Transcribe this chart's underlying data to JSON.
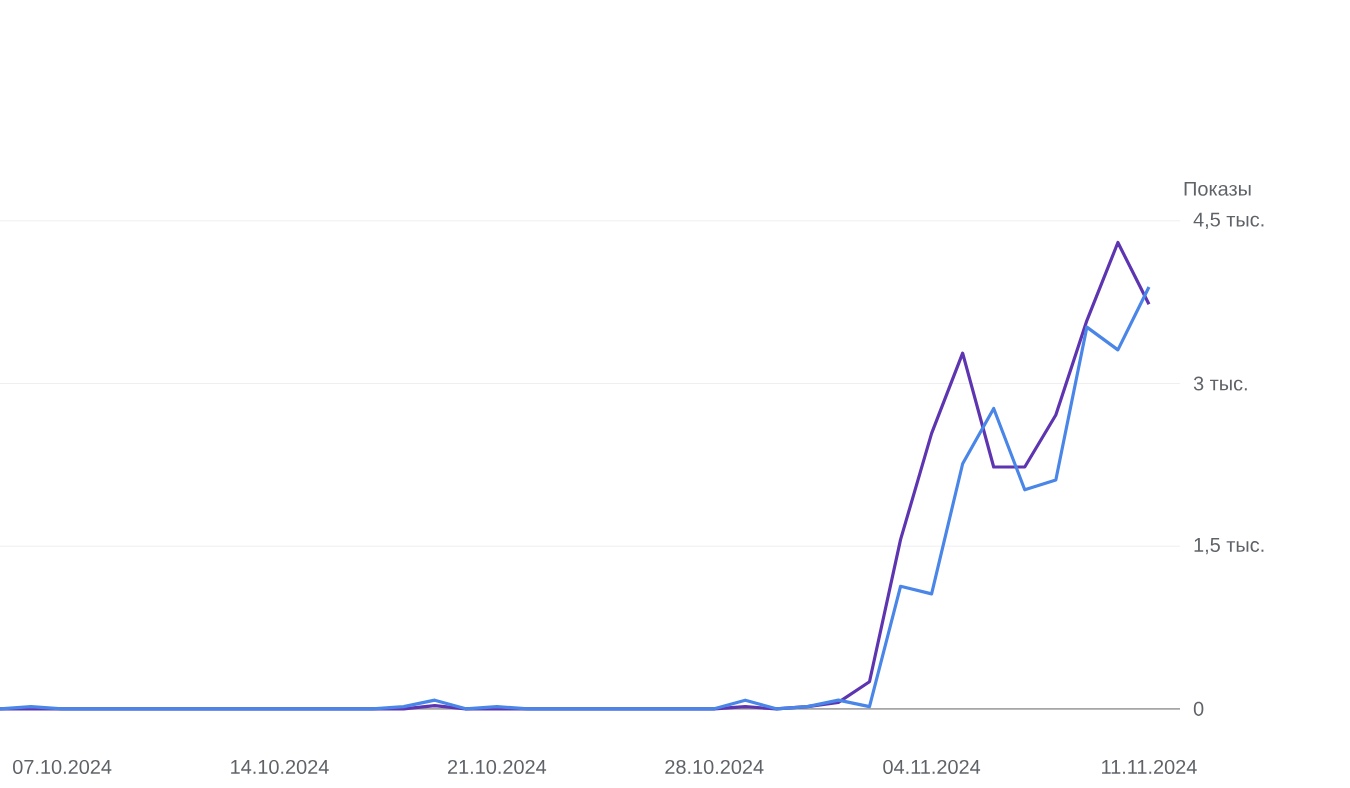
{
  "chart_data": {
    "type": "line",
    "ylabel": "Показы",
    "x": [
      "2024-10-05",
      "2024-10-06",
      "2024-10-07",
      "2024-10-08",
      "2024-10-09",
      "2024-10-10",
      "2024-10-11",
      "2024-10-12",
      "2024-10-13",
      "2024-10-14",
      "2024-10-15",
      "2024-10-16",
      "2024-10-17",
      "2024-10-18",
      "2024-10-19",
      "2024-10-20",
      "2024-10-21",
      "2024-10-22",
      "2024-10-23",
      "2024-10-24",
      "2024-10-25",
      "2024-10-26",
      "2024-10-27",
      "2024-10-28",
      "2024-10-29",
      "2024-10-30",
      "2024-10-31",
      "2024-11-01",
      "2024-11-02",
      "2024-11-03",
      "2024-11-04",
      "2024-11-05",
      "2024-11-06",
      "2024-11-07",
      "2024-11-08",
      "2024-11-09",
      "2024-11-10",
      "2024-11-11"
    ],
    "series": [
      {
        "color": "#5e35b1",
        "values": [
          0,
          0,
          0,
          0,
          0,
          0,
          0,
          0,
          0,
          0,
          0,
          0,
          0,
          0,
          0.03,
          0,
          0,
          0,
          0,
          0,
          0,
          0,
          0,
          0,
          0.02,
          0,
          0.02,
          0.06,
          0.25,
          1.56,
          2.54,
          3.28,
          2.23,
          2.23,
          2.71,
          3.58,
          4.3,
          3.73
        ]
      },
      {
        "color": "#4a86e8",
        "values": [
          0,
          0.02,
          0,
          0,
          0,
          0,
          0,
          0,
          0,
          0,
          0,
          0,
          0,
          0.02,
          0.08,
          0,
          0.02,
          0,
          0,
          0,
          0,
          0,
          0,
          0,
          0.08,
          0,
          0.02,
          0.08,
          0.02,
          1.13,
          1.06,
          2.26,
          2.77,
          2.02,
          2.11,
          3.52,
          3.31,
          3.89
        ]
      }
    ],
    "xlim": [
      "2024-10-05",
      "2024-11-12"
    ],
    "xticks": [
      {
        "value": "2024-10-07",
        "label": "07.10.2024"
      },
      {
        "value": "2024-10-14",
        "label": "14.10.2024"
      },
      {
        "value": "2024-10-21",
        "label": "21.10.2024"
      },
      {
        "value": "2024-10-28",
        "label": "28.10.2024"
      },
      {
        "value": "2024-11-04",
        "label": "04.11.2024"
      },
      {
        "value": "2024-11-11",
        "label": "11.11.2024"
      }
    ],
    "ylim": [
      0,
      4.5
    ],
    "yticks": [
      0,
      {
        "value": 1.5,
        "label": "1,5 тыс."
      },
      {
        "value": 3,
        "label": "3 тыс."
      },
      {
        "value": 4.5,
        "label": "4,5 тыс."
      }
    ],
    "grid": "y",
    "marker": "none",
    "line_style": "solid"
  }
}
